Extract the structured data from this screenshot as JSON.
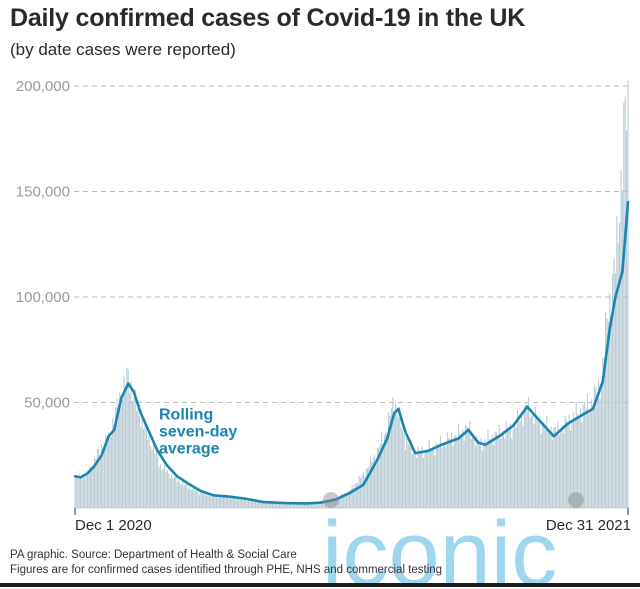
{
  "header": {
    "title": "Daily confirmed cases of Covid-19 in the UK",
    "subtitle": "(by date cases were reported)"
  },
  "footer": {
    "source": "PA graphic. Source: Department of Health & Social Care",
    "note": "Figures are for confirmed cases identified through PHE, NHS and commercial testing"
  },
  "watermark": "iconic",
  "colors": {
    "bars": "#b7c9d3",
    "average_line": "#1a86b0",
    "grid": "#bbbbbb",
    "watermark": "#2aa8d8"
  },
  "chart_data": {
    "type": "bar",
    "title": "Daily confirmed cases of Covid-19 in the UK",
    "subtitle": "(by date cases were reported)",
    "xlabel": "",
    "ylabel": "",
    "ylim": [
      0,
      200000
    ],
    "grid": true,
    "y_ticks": [
      {
        "value": 50000,
        "label": "50,000"
      },
      {
        "value": 100000,
        "label": "100,000"
      },
      {
        "value": 150000,
        "label": "150,000"
      },
      {
        "value": 200000,
        "label": "200,000"
      }
    ],
    "x_range": [
      "2020-12-01",
      "2021-12-31"
    ],
    "x_ticks": [
      {
        "date": "2020-12-01",
        "label": "Dec 1 2020"
      },
      {
        "date": "2021-12-31",
        "label": "Dec 31 2021"
      }
    ],
    "annotation": {
      "lines": [
        "Rolling",
        "seven-day",
        "average"
      ],
      "date": "2021-01-30",
      "value": 42000
    },
    "series": [
      {
        "name": "Daily cases",
        "kind": "bars",
        "points": [
          [
            "2020-12-01",
            14000
          ],
          [
            "2020-12-10",
            16000
          ],
          [
            "2020-12-18",
            27000
          ],
          [
            "2020-12-25",
            33000
          ],
          [
            "2021-01-01",
            50000
          ],
          [
            "2021-01-08",
            63000
          ],
          [
            "2021-01-14",
            48000
          ],
          [
            "2021-01-22",
            35000
          ],
          [
            "2021-01-31",
            20000
          ],
          [
            "2021-02-10",
            14000
          ],
          [
            "2021-02-20",
            10000
          ],
          [
            "2021-03-01",
            7000
          ],
          [
            "2021-03-15",
            5500
          ],
          [
            "2021-04-01",
            4000
          ],
          [
            "2021-04-20",
            2500
          ],
          [
            "2021-05-10",
            2200
          ],
          [
            "2021-05-25",
            2800
          ],
          [
            "2021-06-05",
            4500
          ],
          [
            "2021-06-15",
            8000
          ],
          [
            "2021-06-25",
            16000
          ],
          [
            "2021-07-05",
            27000
          ],
          [
            "2021-07-12",
            38000
          ],
          [
            "2021-07-17",
            52000
          ],
          [
            "2021-07-25",
            32000
          ],
          [
            "2021-08-01",
            26000
          ],
          [
            "2021-08-15",
            29000
          ],
          [
            "2021-08-29",
            34000
          ],
          [
            "2021-09-08",
            38000
          ],
          [
            "2021-09-15",
            30000
          ],
          [
            "2021-09-25",
            34000
          ],
          [
            "2021-10-10",
            38000
          ],
          [
            "2021-10-20",
            48000
          ],
          [
            "2021-10-30",
            40000
          ],
          [
            "2021-11-10",
            36000
          ],
          [
            "2021-11-25",
            45000
          ],
          [
            "2021-12-05",
            50000
          ],
          [
            "2021-12-12",
            60000
          ],
          [
            "2021-12-16",
            90000
          ],
          [
            "2021-12-22",
            115000
          ],
          [
            "2021-12-29",
            185000
          ],
          [
            "2021-12-31",
            190000
          ]
        ]
      },
      {
        "name": "Rolling seven-day average",
        "kind": "line",
        "points": [
          [
            "2020-12-01",
            15000
          ],
          [
            "2020-12-05",
            14500
          ],
          [
            "2020-12-10",
            16500
          ],
          [
            "2020-12-15",
            20000
          ],
          [
            "2020-12-20",
            25000
          ],
          [
            "2020-12-25",
            34000
          ],
          [
            "2020-12-29",
            37000
          ],
          [
            "2021-01-03",
            52000
          ],
          [
            "2021-01-08",
            59000
          ],
          [
            "2021-01-12",
            55000
          ],
          [
            "2021-01-17",
            45000
          ],
          [
            "2021-01-23",
            36000
          ],
          [
            "2021-01-29",
            27000
          ],
          [
            "2021-02-05",
            20000
          ],
          [
            "2021-02-12",
            15000
          ],
          [
            "2021-02-20",
            11500
          ],
          [
            "2021-03-01",
            8000
          ],
          [
            "2021-03-10",
            6000
          ],
          [
            "2021-03-20",
            5500
          ],
          [
            "2021-04-01",
            4500
          ],
          [
            "2021-04-15",
            2800
          ],
          [
            "2021-04-30",
            2300
          ],
          [
            "2021-05-15",
            2200
          ],
          [
            "2021-05-25",
            2500
          ],
          [
            "2021-06-05",
            4000
          ],
          [
            "2021-06-15",
            7000
          ],
          [
            "2021-06-25",
            11000
          ],
          [
            "2021-07-05",
            23000
          ],
          [
            "2021-07-12",
            33000
          ],
          [
            "2021-07-17",
            45000
          ],
          [
            "2021-07-20",
            47000
          ],
          [
            "2021-07-25",
            36000
          ],
          [
            "2021-08-01",
            26000
          ],
          [
            "2021-08-10",
            27000
          ],
          [
            "2021-08-20",
            30000
          ],
          [
            "2021-09-01",
            33000
          ],
          [
            "2021-09-08",
            37000
          ],
          [
            "2021-09-15",
            31000
          ],
          [
            "2021-09-20",
            30000
          ],
          [
            "2021-09-30",
            34000
          ],
          [
            "2021-10-10",
            39000
          ],
          [
            "2021-10-20",
            48000
          ],
          [
            "2021-10-28",
            42000
          ],
          [
            "2021-11-08",
            34000
          ],
          [
            "2021-11-18",
            40000
          ],
          [
            "2021-11-28",
            44000
          ],
          [
            "2021-12-06",
            47000
          ],
          [
            "2021-12-13",
            60000
          ],
          [
            "2021-12-18",
            85000
          ],
          [
            "2021-12-22",
            100000
          ],
          [
            "2021-12-27",
            112000
          ],
          [
            "2021-12-31",
            145000
          ]
        ]
      }
    ]
  }
}
